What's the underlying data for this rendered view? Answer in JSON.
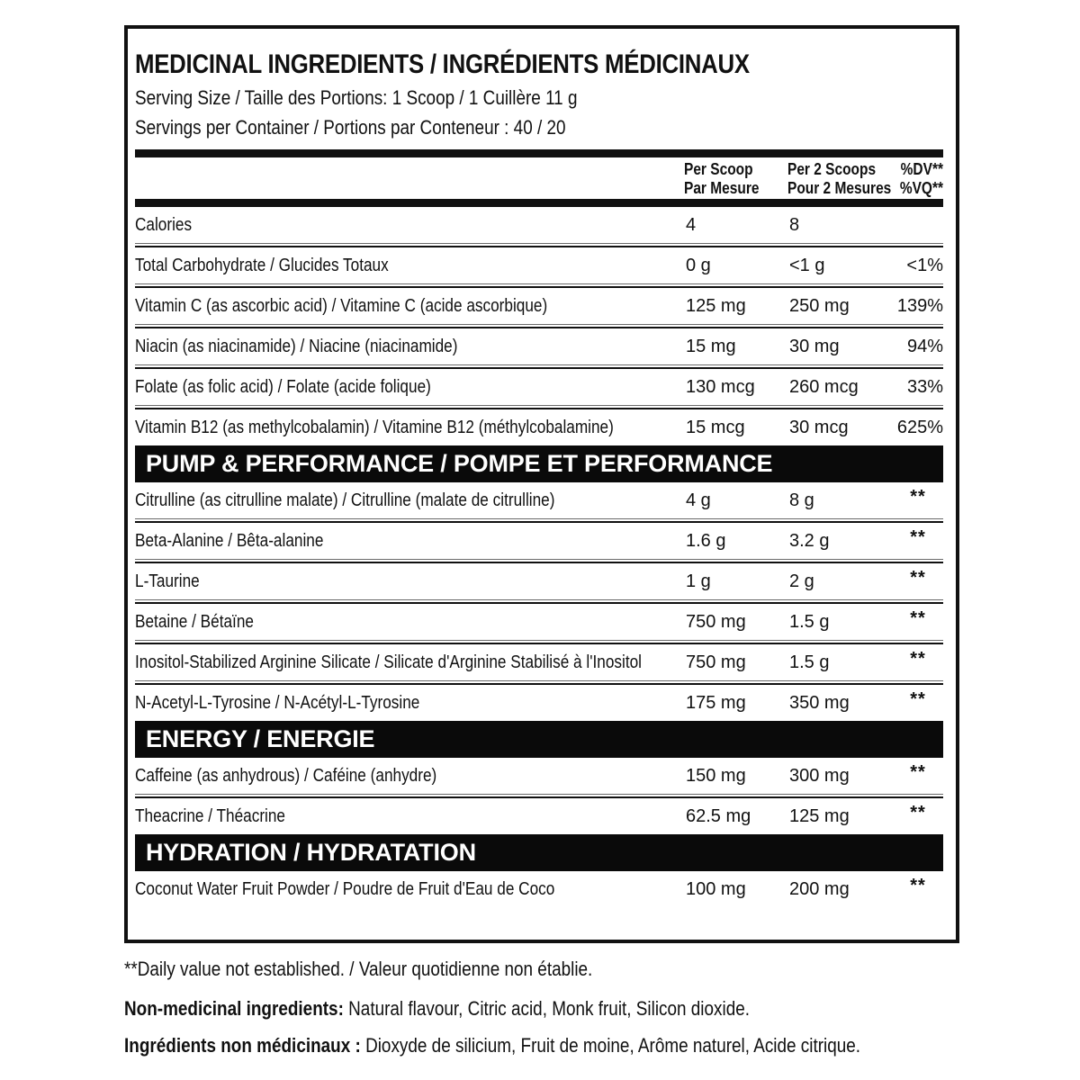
{
  "panel": {
    "title": "MEDICINAL INGREDIENTS / INGRÉDIENTS MÉDICINAUX",
    "serving_size": "Serving Size / Taille des Portions: 1 Scoop / 1 Cuillère 11 g",
    "servings_per_container": "Servings per Container / Portions par Conteneur : 40 / 20"
  },
  "table": {
    "columns": [
      {
        "en": "Per Scoop",
        "fr": "Par Mesure"
      },
      {
        "en": "Per 2 Scoops",
        "fr": "Pour 2 Mesures"
      },
      {
        "en": "%DV**",
        "fr": "%VQ**"
      }
    ],
    "sections": [
      {
        "header": "",
        "rows": [
          {
            "label": "Calories",
            "per_scoop": "4",
            "per_2_scoops": "8",
            "dv": ""
          },
          {
            "label": "Total Carbohydrate / Glucides Totaux",
            "per_scoop": "0 g",
            "per_2_scoops": "<1 g",
            "dv": "<1%"
          },
          {
            "label": "Vitamin C (as ascorbic acid) / Vitamine C (acide ascorbique)",
            "per_scoop": "125 mg",
            "per_2_scoops": "250 mg",
            "dv": "139%"
          },
          {
            "label": "Niacin (as niacinamide) / Niacine (niacinamide)",
            "per_scoop": "15 mg",
            "per_2_scoops": "30 mg",
            "dv": "94%"
          },
          {
            "label": "Folate (as folic acid) / Folate (acide folique)",
            "per_scoop": "130 mcg",
            "per_2_scoops": "260 mcg",
            "dv": "33%"
          },
          {
            "label": "Vitamin B12 (as methylcobalamin) / Vitamine B12 (méthylcobalamine)",
            "per_scoop": "15 mcg",
            "per_2_scoops": "30 mcg",
            "dv": "625%"
          }
        ]
      },
      {
        "header": "PUMP & PERFORMANCE / POMPE ET PERFORMANCE",
        "rows": [
          {
            "label": "Citrulline (as citrulline malate) / Citrulline (malate de citrulline)",
            "per_scoop": "4 g",
            "per_2_scoops": "8 g",
            "dv": "**"
          },
          {
            "label": "Beta-Alanine / Bêta-alanine",
            "per_scoop": "1.6 g",
            "per_2_scoops": "3.2 g",
            "dv": "**"
          },
          {
            "label": "L-Taurine",
            "per_scoop": "1 g",
            "per_2_scoops": "2 g",
            "dv": "**"
          },
          {
            "label": "Betaine / Bétaïne",
            "per_scoop": "750 mg",
            "per_2_scoops": "1.5 g",
            "dv": "**"
          },
          {
            "label": "Inositol-Stabilized Arginine Silicate / Silicate d'Arginine Stabilisé à l'Inositol",
            "per_scoop": "750 mg",
            "per_2_scoops": "1.5 g",
            "dv": "**"
          },
          {
            "label": "N-Acetyl-L-Tyrosine / N-Acétyl-L-Tyrosine",
            "per_scoop": "175 mg",
            "per_2_scoops": "350 mg",
            "dv": "**"
          }
        ]
      },
      {
        "header": "ENERGY / ENERGIE",
        "rows": [
          {
            "label": "Caffeine (as anhydrous) / Caféine (anhydre)",
            "per_scoop": "150 mg",
            "per_2_scoops": "300 mg",
            "dv": "**"
          },
          {
            "label": "Theacrine / Théacrine",
            "per_scoop": "62.5 mg",
            "per_2_scoops": "125 mg",
            "dv": "**"
          }
        ]
      },
      {
        "header": "HYDRATION / HYDRATATION",
        "rows": [
          {
            "label": "Coconut Water Fruit Powder / Poudre de Fruit d'Eau de Coco",
            "per_scoop": "100 mg",
            "per_2_scoops": "200 mg",
            "dv": "**"
          }
        ]
      }
    ]
  },
  "footnotes": {
    "daily_value": "**Daily value not established. / Valeur quotidienne non établie.",
    "non_medicinal_en_label": "Non-medicinal ingredients:",
    "non_medicinal_en_text": " Natural flavour, Citric acid, Monk fruit, Silicon dioxide.",
    "non_medicinal_fr_label": "Ingrédients non médicinaux :",
    "non_medicinal_fr_text": " Dioxyde de silicium, Fruit de moine, Arôme naturel, Acide citrique."
  },
  "colors": {
    "ink": "#111111",
    "section_bar": "#0a0a0a",
    "background": "#ffffff"
  }
}
